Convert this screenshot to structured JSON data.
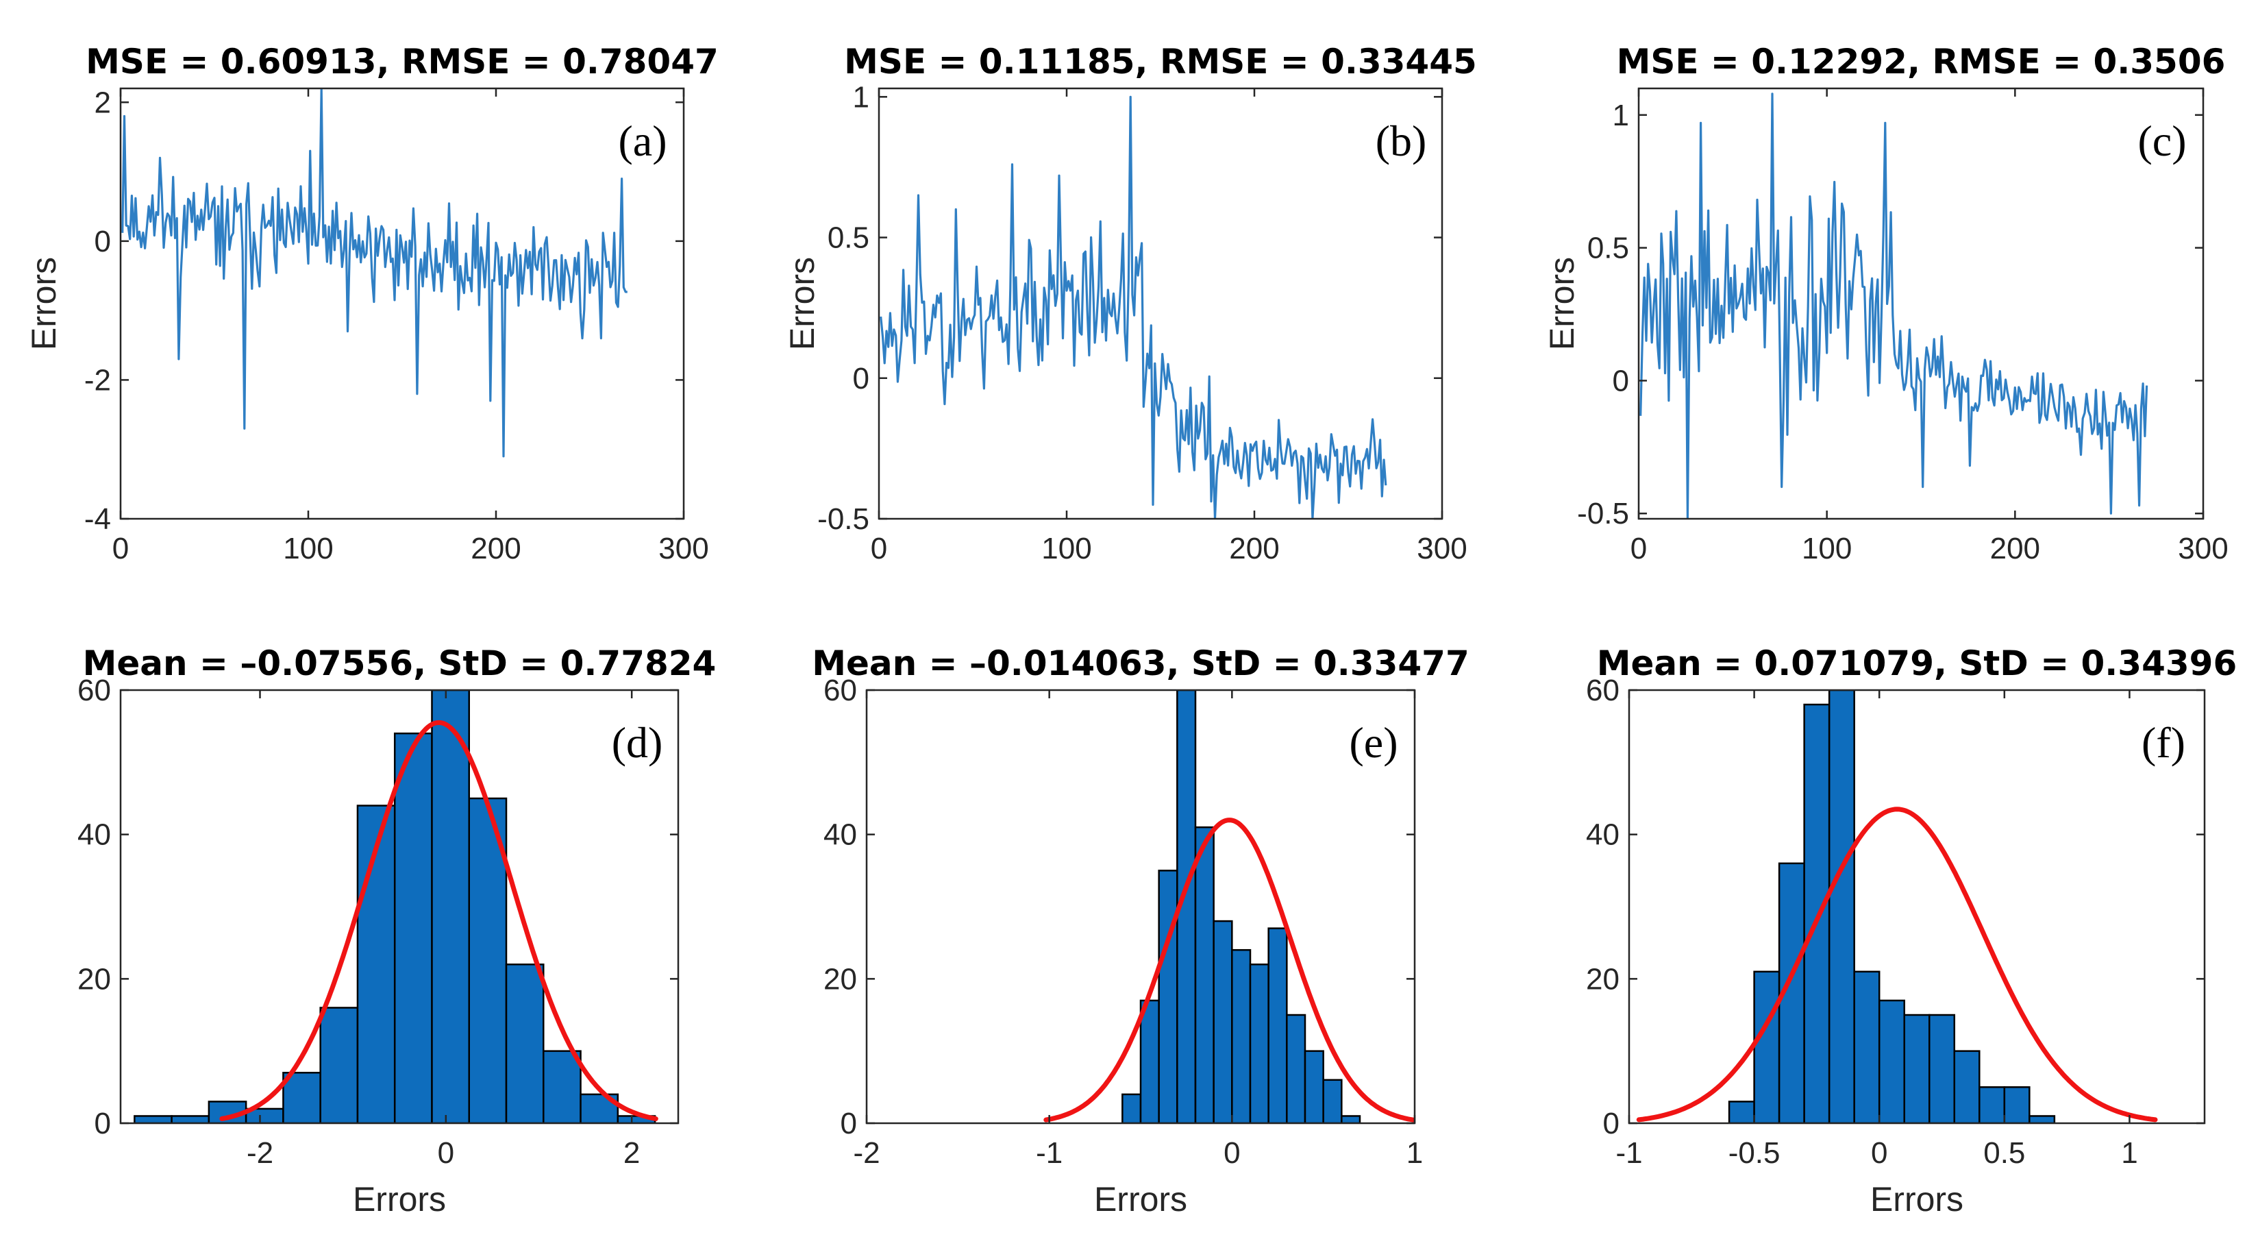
{
  "figure": {
    "colors": {
      "line": "#2F7FC4",
      "bar_fill": "#0E6DBD",
      "bar_edge": "#000000",
      "fit_curve": "#F01414",
      "axes": "#262626"
    }
  },
  "chart_data": [
    {
      "id": "a",
      "type": "line",
      "panel_label": "(a)",
      "title": "MSE = 0.60913, RMSE = 0.78047",
      "xlabel": "",
      "ylabel": "Errors",
      "xlim": [
        0,
        300
      ],
      "ylim": [
        -4,
        2.2
      ],
      "xticks": [
        0,
        100,
        200,
        300
      ],
      "yticks": [
        -4,
        -2,
        0,
        2
      ],
      "n_points": 270,
      "seed": 11,
      "base_trend": [
        0.35,
        -0.55
      ],
      "noise_sd": 0.55,
      "spikes": [
        [
          1,
          1.8
        ],
        [
          20,
          1.2
        ],
        [
          30,
          -1.7
        ],
        [
          65,
          -2.7
        ],
        [
          100,
          1.3
        ],
        [
          106,
          2.2
        ],
        [
          120,
          -1.3
        ],
        [
          157,
          -2.2
        ],
        [
          196,
          -2.3
        ],
        [
          203,
          -3.1
        ],
        [
          245,
          -1.4
        ],
        [
          255,
          -1.4
        ],
        [
          266,
          0.9
        ]
      ]
    },
    {
      "id": "b",
      "type": "line",
      "panel_label": "(b)",
      "title": "MSE = 0.11185, RMSE = 0.33445",
      "xlabel": "",
      "ylabel": "Errors",
      "xlim": [
        0,
        300
      ],
      "ylim": [
        -0.5,
        1.03
      ],
      "xticks": [
        0,
        100,
        200,
        300
      ],
      "yticks": [
        -0.5,
        0,
        0.5,
        1
      ],
      "n_points": 270,
      "seed": 23,
      "segments": [
        [
          0,
          140,
          0.18,
          0.3
        ],
        [
          140,
          180,
          0.0,
          -0.28
        ],
        [
          180,
          270,
          -0.28,
          -0.3
        ]
      ],
      "noise_sd": 0.2,
      "noise_sd_late": 0.11,
      "spikes": [
        [
          20,
          0.65
        ],
        [
          40,
          0.6
        ],
        [
          70,
          0.76
        ],
        [
          95,
          0.72
        ],
        [
          133,
          1.0
        ],
        [
          145,
          -0.45
        ],
        [
          178,
          -0.5
        ],
        [
          230,
          -0.5
        ],
        [
          267,
          -0.42
        ]
      ]
    },
    {
      "id": "c",
      "type": "line",
      "panel_label": "(c)",
      "title": "MSE = 0.12292, RMSE = 0.3506",
      "xlabel": "",
      "ylabel": "Errors",
      "xlim": [
        0,
        300
      ],
      "ylim": [
        -0.52,
        1.1
      ],
      "xticks": [
        0,
        100,
        200,
        300
      ],
      "yticks": [
        -0.5,
        0,
        0.5,
        1
      ],
      "n_points": 270,
      "seed": 37,
      "segments": [
        [
          0,
          135,
          0.3,
          0.3
        ],
        [
          135,
          270,
          0.05,
          -0.15
        ]
      ],
      "noise_sd": 0.32,
      "noise_sd_late": 0.11,
      "spikes": [
        [
          25,
          -0.52
        ],
        [
          32,
          0.97
        ],
        [
          70,
          1.08
        ],
        [
          75,
          -0.4
        ],
        [
          130,
          0.97
        ],
        [
          150,
          -0.4
        ],
        [
          175,
          -0.32
        ],
        [
          250,
          -0.5
        ],
        [
          265,
          -0.47
        ]
      ]
    },
    {
      "id": "d",
      "type": "histogram",
      "panel_label": "(d)",
      "title": "Mean = –0.07556, StD = 0.77824",
      "xlabel": "Errors",
      "ylabel": "",
      "xlim": [
        -3.5,
        2.5
      ],
      "ylim": [
        0,
        60
      ],
      "xticks": [
        -2,
        0,
        2
      ],
      "yticks": [
        0,
        20,
        40,
        60
      ],
      "bin_start": -3.35,
      "bin_width": 0.4,
      "counts": [
        1,
        1,
        3,
        2,
        7,
        16,
        44,
        54,
        60,
        45,
        22,
        10,
        4,
        1
      ],
      "fit": {
        "mean": -0.07556,
        "std": 0.77824,
        "peak": 55.5
      }
    },
    {
      "id": "e",
      "type": "histogram",
      "panel_label": "(e)",
      "title": "Mean = –0.014063, StD = 0.33477",
      "xlabel": "Errors",
      "ylabel": "",
      "xlim": [
        -2,
        1
      ],
      "ylim": [
        0,
        60
      ],
      "xticks": [
        -2,
        -1,
        0,
        1
      ],
      "yticks": [
        0,
        20,
        40,
        60
      ],
      "bin_start": -0.6,
      "bin_width": 0.1,
      "counts": [
        4,
        17,
        35,
        60,
        41,
        28,
        24,
        22,
        27,
        15,
        10,
        6,
        1
      ],
      "fit": {
        "mean": -0.014063,
        "std": 0.33477,
        "peak": 42
      }
    },
    {
      "id": "f",
      "type": "histogram",
      "panel_label": "(f)",
      "title": "Mean = 0.071079, StD = 0.34396",
      "xlabel": "Errors",
      "ylabel": "",
      "xlim": [
        -1,
        1.3
      ],
      "ylim": [
        0,
        60
      ],
      "xticks": [
        -1,
        -0.5,
        0,
        0.5,
        1
      ],
      "yticks": [
        0,
        20,
        40,
        60
      ],
      "bin_start": -0.6,
      "bin_width": 0.1,
      "counts": [
        3,
        21,
        36,
        58,
        60,
        21,
        17,
        15,
        15,
        10,
        5,
        5,
        1
      ],
      "fit": {
        "mean": 0.071079,
        "std": 0.34396,
        "peak": 43.5
      }
    }
  ]
}
